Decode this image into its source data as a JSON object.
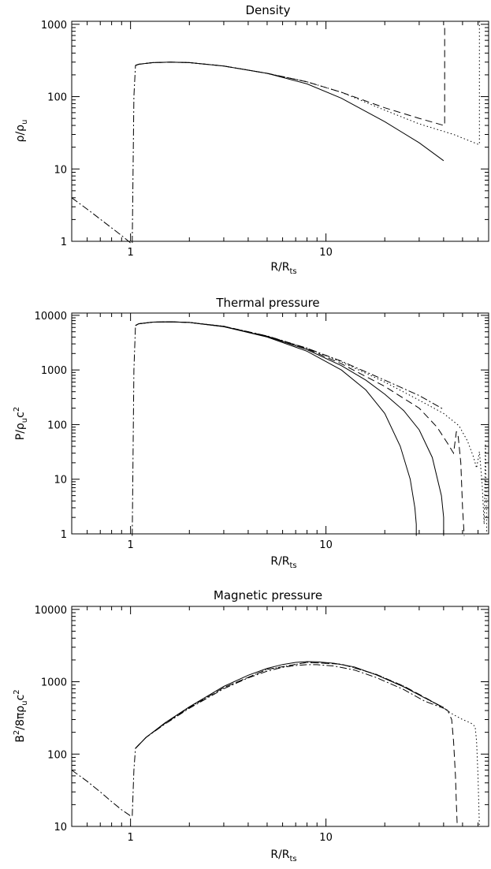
{
  "chart_data": [
    {
      "type": "line",
      "title": "Density",
      "xlabel": "R/R",
      "xlabel_sub": "ts",
      "ylabel": "ρ/ρ",
      "ylabel_sub": "u",
      "xscale": "log",
      "yscale": "log",
      "xlim": [
        0.5,
        68
      ],
      "ylim": [
        1,
        1100
      ],
      "xticks": [
        {
          "v": 1,
          "label": "1"
        },
        {
          "v": 10,
          "label": "10"
        }
      ],
      "yticks": [
        {
          "v": 1,
          "label": "1"
        },
        {
          "v": 10,
          "label": "10"
        },
        {
          "v": 100,
          "label": "100"
        },
        {
          "v": 1000,
          "label": "1000"
        }
      ],
      "series": [
        {
          "style": "dashdot",
          "x": [
            0.5,
            0.62,
            0.75,
            0.9,
            1.0,
            1.02
          ],
          "y": [
            4.0,
            2.6,
            1.75,
            1.2,
            0.95,
            0.95
          ]
        },
        {
          "style": "dashdot",
          "x": [
            1.02,
            1.04,
            1.06,
            1.1,
            1.3,
            1.6,
            2.0,
            3.0,
            5.0,
            8.0
          ],
          "y": [
            0.95,
            100,
            270,
            280,
            295,
            300,
            295,
            265,
            210,
            160
          ]
        },
        {
          "style": "solid",
          "x": [
            1.06,
            1.1,
            1.3,
            1.6,
            2.0,
            3.0,
            5.0,
            8.0,
            12.0,
            20.0,
            30.0,
            40.0
          ],
          "y": [
            270,
            280,
            295,
            300,
            295,
            265,
            210,
            150,
            95,
            45,
            23,
            13
          ]
        },
        {
          "style": "dashed",
          "x": [
            1.06,
            1.1,
            1.3,
            1.6,
            2.0,
            3.0,
            5.0,
            8.0,
            12.0,
            20.0,
            30.0,
            40.0,
            40.0,
            40.5,
            40.5
          ],
          "y": [
            270,
            280,
            295,
            300,
            295,
            265,
            210,
            160,
            115,
            70,
            50,
            40,
            40,
            40,
            1000
          ]
        },
        {
          "style": "dotted",
          "x": [
            1.06,
            1.1,
            1.3,
            1.6,
            2.0,
            3.0,
            5.0,
            8.0,
            12.0,
            20.0,
            30.0,
            45.0,
            60.0,
            60.0,
            61.0,
            61.0
          ],
          "y": [
            270,
            280,
            295,
            300,
            295,
            265,
            210,
            160,
            115,
            65,
            42,
            30,
            22,
            22,
            22,
            1100
          ]
        }
      ]
    },
    {
      "type": "line",
      "title": "Thermal pressure",
      "xlabel": "R/R",
      "xlabel_sub": "ts",
      "ylabel": "P/ρ",
      "ylabel_sub": "u",
      "ylabel_tail": "c",
      "ylabel_sup": "2",
      "xscale": "log",
      "yscale": "log",
      "xlim": [
        0.5,
        68
      ],
      "ylim": [
        1,
        11000
      ],
      "xticks": [
        {
          "v": 1,
          "label": "1"
        },
        {
          "v": 10,
          "label": "10"
        }
      ],
      "yticks": [
        {
          "v": 1,
          "label": "1"
        },
        {
          "v": 10,
          "label": "10"
        },
        {
          "v": 100,
          "label": "100"
        },
        {
          "v": 1000,
          "label": "1000"
        },
        {
          "v": 10000,
          "label": "10000"
        }
      ],
      "series": [
        {
          "style": "dashdot",
          "x": [
            1.02,
            1.04,
            1.06,
            1.1,
            1.3,
            1.6,
            2.0,
            3.0,
            5.0,
            8.0,
            12.0,
            20.0,
            30.0,
            40.0
          ],
          "y": [
            0.9,
            1000,
            6500,
            7000,
            7500,
            7600,
            7400,
            6300,
            4200,
            2500,
            1450,
            650,
            340,
            190
          ]
        },
        {
          "style": "solid",
          "x": [
            1.06,
            1.1,
            1.3,
            1.6,
            2.0,
            3.0,
            5.0,
            8.0,
            12.0,
            16.0,
            20.0,
            24.0,
            27.0,
            28.5,
            29.0,
            29.0
          ],
          "y": [
            6500,
            7000,
            7500,
            7600,
            7400,
            6200,
            4000,
            2200,
            1000,
            430,
            160,
            40,
            10,
            3,
            1.5,
            0.9
          ]
        },
        {
          "style": "solid",
          "x": [
            1.06,
            1.1,
            1.3,
            1.6,
            2.0,
            3.0,
            5.0,
            8.0,
            12.0,
            16.0,
            20.0,
            25.0,
            30.0,
            35.0,
            39.0,
            40.0,
            40.0
          ],
          "y": [
            6500,
            7000,
            7500,
            7600,
            7400,
            6200,
            4100,
            2350,
            1200,
            650,
            360,
            180,
            80,
            25,
            5,
            2,
            0.9
          ]
        },
        {
          "style": "dashed",
          "x": [
            1.06,
            1.1,
            1.3,
            1.6,
            2.0,
            3.0,
            5.0,
            8.0,
            12.0,
            20.0,
            30.0,
            37.0,
            42.0,
            45.0,
            46.5,
            47.5,
            49.0,
            50.0,
            51.0
          ],
          "y": [
            6500,
            7000,
            7500,
            7600,
            7400,
            6300,
            4150,
            2450,
            1300,
            500,
            200,
            90,
            45,
            30,
            75,
            60,
            20,
            3,
            0.9
          ]
        },
        {
          "style": "dotted",
          "x": [
            1.06,
            1.1,
            1.3,
            1.6,
            2.0,
            3.0,
            5.0,
            8.0,
            12.0,
            20.0,
            30.0,
            40.0,
            48.0,
            53.0,
            57.0,
            59.0,
            61.0,
            63.0,
            64.5,
            65.5,
            66.5
          ],
          "y": [
            6500,
            7000,
            7500,
            7600,
            7400,
            6300,
            4200,
            2500,
            1400,
            600,
            280,
            160,
            95,
            50,
            25,
            16,
            32,
            8,
            1.5,
            45,
            1
          ]
        }
      ]
    },
    {
      "type": "line",
      "title": "Magnetic pressure",
      "xlabel": "R/R",
      "xlabel_sub": "ts",
      "ylabel": "B",
      "ylabel_sup": "2",
      "ylabel_mid": "/8πρ",
      "ylabel_sub": "u",
      "ylabel_tail": "c",
      "ylabel_sup2": "2",
      "xscale": "log",
      "yscale": "log",
      "xlim": [
        0.5,
        68
      ],
      "ylim": [
        10,
        11000
      ],
      "xticks": [
        {
          "v": 1,
          "label": "1"
        },
        {
          "v": 10,
          "label": "10"
        }
      ],
      "yticks": [
        {
          "v": 10,
          "label": "10"
        },
        {
          "v": 100,
          "label": "100"
        },
        {
          "v": 1000,
          "label": "1000"
        },
        {
          "v": 10000,
          "label": "10000"
        }
      ],
      "series": [
        {
          "style": "dashdot",
          "x": [
            0.5,
            0.6,
            0.7,
            0.8,
            0.9,
            1.0,
            1.02
          ],
          "y": [
            60,
            42,
            30,
            22,
            17,
            14,
            14
          ]
        },
        {
          "style": "dashdot",
          "x": [
            1.02,
            1.04,
            1.06,
            1.2,
            1.5,
            2.0,
            3.0,
            4.0,
            5.0,
            6.0,
            7.0,
            8.0,
            9.0,
            11.0,
            14.0,
            18.0,
            25.0,
            32.0,
            40.0
          ],
          "y": [
            14,
            60,
            120,
            170,
            260,
            430,
            800,
            1130,
            1400,
            1580,
            1680,
            1720,
            1720,
            1650,
            1450,
            1150,
            780,
            540,
            430
          ]
        },
        {
          "style": "solid",
          "x": [
            1.06,
            1.2,
            1.5,
            2.0,
            3.0,
            4.0,
            5.0,
            6.0,
            7.0,
            8.0,
            9.0,
            11.0,
            14.0,
            18.0,
            25.0,
            32.0,
            40.0
          ],
          "y": [
            120,
            170,
            270,
            450,
            860,
            1230,
            1530,
            1730,
            1850,
            1900,
            1890,
            1800,
            1600,
            1250,
            850,
            600,
            440
          ]
        },
        {
          "style": "dashed",
          "x": [
            1.06,
            1.2,
            1.5,
            2.0,
            3.0,
            5.0,
            8.0,
            12.0,
            18.0,
            25.0,
            32.0,
            38.0,
            42.0,
            44.0,
            45.0,
            46.0,
            46.5,
            47.0
          ],
          "y": [
            120,
            170,
            265,
            440,
            830,
            1480,
            1850,
            1750,
            1270,
            870,
            610,
            470,
            400,
            300,
            150,
            50,
            20,
            10
          ]
        },
        {
          "style": "dotted",
          "x": [
            1.06,
            1.2,
            1.5,
            2.0,
            3.0,
            5.0,
            8.0,
            12.0,
            18.0,
            25.0,
            32.0,
            40.0,
            45.0,
            50.0,
            55.0,
            58.0,
            59.0,
            60.0,
            61.0
          ],
          "y": [
            120,
            170,
            265,
            440,
            830,
            1480,
            1850,
            1750,
            1270,
            870,
            600,
            430,
            350,
            300,
            270,
            240,
            150,
            50,
            10
          ]
        }
      ]
    }
  ]
}
